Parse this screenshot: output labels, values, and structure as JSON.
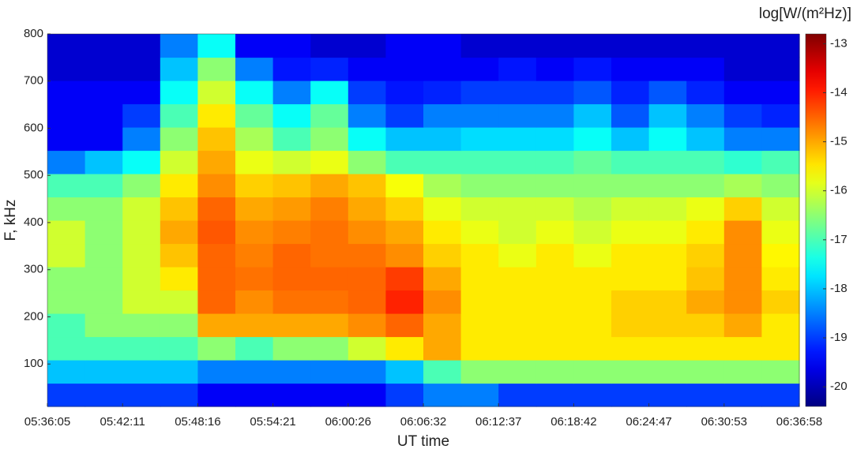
{
  "chart_data": {
    "type": "heatmap",
    "colorscale": "jet",
    "ylabel": "F, kHz",
    "xlabel": "UT time",
    "colorbar_title": "log[W/(m²Hz)]",
    "xticks": [
      "05:36:05",
      "05:42:11",
      "05:48:16",
      "05:54:21",
      "06:00:26",
      "06:06:32",
      "06:12:37",
      "06:18:42",
      "06:24:47",
      "06:30:53",
      "06:36:58"
    ],
    "ylim": [
      10,
      800
    ],
    "yticks": [
      100,
      200,
      300,
      400,
      500,
      600,
      700,
      800
    ],
    "zlim": [
      -20.4,
      -12.8
    ],
    "zticks": [
      -13,
      -14,
      -15,
      -16,
      -17,
      -18,
      -19,
      -20
    ],
    "z": [
      [
        -19,
        -19,
        -19,
        -19,
        -19.5,
        -19.5,
        -19.5,
        -19.5,
        -19.5,
        -19,
        -18.5,
        -18.5,
        -19,
        -19,
        -19,
        -19,
        -19,
        -19,
        -19,
        -19
      ],
      [
        -18,
        -18,
        -18,
        -18,
        -18.5,
        -18.5,
        -18.5,
        -18.5,
        -18.5,
        -18,
        -17,
        -16.5,
        -16.5,
        -16.5,
        -16.5,
        -16.5,
        -16.5,
        -16.5,
        -16.5,
        -16.5
      ],
      [
        -17,
        -17,
        -17,
        -17,
        -16.5,
        -17,
        -16.5,
        -16.5,
        -16,
        -15.5,
        -15,
        -15.5,
        -15.5,
        -15.5,
        -15.5,
        -15.5,
        -15.5,
        -15.5,
        -15.5,
        -15.5
      ],
      [
        -17,
        -16.5,
        -16.5,
        -16.5,
        -15,
        -15,
        -15,
        -15,
        -14.8,
        -14.5,
        -15,
        -15.5,
        -15.5,
        -15.5,
        -15.5,
        -15.3,
        -15.3,
        -15.3,
        -15,
        -15.5
      ],
      [
        -16.5,
        -16.5,
        -16,
        -16,
        -14.5,
        -14.8,
        -14.6,
        -14.6,
        -14.5,
        -14,
        -14.8,
        -15.5,
        -15.5,
        -15.5,
        -15.5,
        -15.3,
        -15.3,
        -15,
        -14.8,
        -15.3
      ],
      [
        -16.5,
        -16.5,
        -16,
        -15.5,
        -14.5,
        -14.6,
        -14.5,
        -14.5,
        -14.5,
        -14.2,
        -15,
        -15.5,
        -15.5,
        -15.5,
        -15.5,
        -15.5,
        -15.5,
        -15.2,
        -14.8,
        -15.5
      ],
      [
        -16,
        -16.5,
        -16,
        -15.2,
        -14.5,
        -14.7,
        -14.5,
        -14.6,
        -14.6,
        -14.8,
        -15.3,
        -15.5,
        -15.8,
        -15.5,
        -15.8,
        -15.5,
        -15.5,
        -15.3,
        -14.8,
        -15.6
      ],
      [
        -16,
        -16.5,
        -16,
        -15,
        -14.4,
        -14.8,
        -14.7,
        -14.6,
        -14.8,
        -15,
        -15.5,
        -15.8,
        -16,
        -15.8,
        -16,
        -15.8,
        -15.8,
        -15.5,
        -14.8,
        -15.8
      ],
      [
        -16.5,
        -16.5,
        -16,
        -15.2,
        -14.5,
        -15,
        -14.9,
        -14.7,
        -15,
        -15.3,
        -15.8,
        -16,
        -16,
        -16,
        -16.2,
        -16,
        -16,
        -15.8,
        -15.3,
        -16
      ],
      [
        -17,
        -17,
        -16.5,
        -15.5,
        -14.8,
        -15.3,
        -15.2,
        -15,
        -15.2,
        -15.7,
        -16.3,
        -16.5,
        -16.5,
        -16.5,
        -16.5,
        -16.5,
        -16.5,
        -16.5,
        -16.3,
        -16.5
      ],
      [
        -18.5,
        -18,
        -17.5,
        -16,
        -15,
        -15.8,
        -16,
        -15.8,
        -16.5,
        -17,
        -17,
        -17,
        -17,
        -17,
        -16.8,
        -17,
        -17,
        -17,
        -17.2,
        -17
      ],
      [
        -19.5,
        -19.5,
        -18.5,
        -16.5,
        -15.2,
        -16.3,
        -17,
        -16.5,
        -17.5,
        -18,
        -18,
        -17.8,
        -17.8,
        -17.8,
        -17.5,
        -18,
        -17.5,
        -18,
        -18.5,
        -18.5
      ],
      [
        -19.5,
        -19.5,
        -19,
        -17,
        -15.5,
        -16.8,
        -17.5,
        -16.8,
        -18.5,
        -19,
        -18.5,
        -18.5,
        -18.5,
        -18.5,
        -18,
        -18.8,
        -18,
        -18.5,
        -19,
        -19.2
      ],
      [
        -19.5,
        -19.5,
        -19.5,
        -17.5,
        -16,
        -17.5,
        -18.5,
        -17.5,
        -19,
        -19.3,
        -19.2,
        -19,
        -19,
        -19,
        -18.8,
        -19.2,
        -18.8,
        -19.2,
        -19.5,
        -19.5
      ],
      [
        -19.8,
        -19.8,
        -19.8,
        -18,
        -16.5,
        -18.5,
        -19.3,
        -19.2,
        -19.5,
        -19.5,
        -19.5,
        -19.5,
        -19.3,
        -19.5,
        -19.3,
        -19.5,
        -19.5,
        -19.5,
        -19.8,
        -19.8
      ],
      [
        -19.8,
        -19.8,
        -19.8,
        -18.5,
        -17.5,
        -19.5,
        -19.5,
        -19.8,
        -19.8,
        -19.5,
        -19.5,
        -19.8,
        -19.8,
        -19.8,
        -19.8,
        -19.8,
        -19.8,
        -19.8,
        -19.8,
        -19.8
      ]
    ]
  }
}
